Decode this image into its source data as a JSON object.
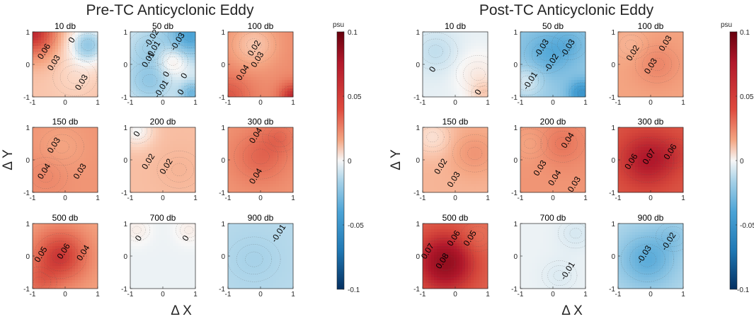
{
  "chart_data": [
    {
      "type": "heatmap",
      "title": "Pre-TC Anticyclonic Eddy",
      "xlabel": "Δ X",
      "ylabel": "Δ Y",
      "xlim": [
        -1,
        1
      ],
      "ylim": [
        -1,
        1
      ],
      "xticks": [
        "-1",
        "0",
        "1"
      ],
      "yticks": [
        "-1",
        "0",
        "1"
      ],
      "colorbar": {
        "label": "psu",
        "range": [
          -0.1,
          0.1
        ],
        "ticks": [
          "0.1",
          "0.05",
          "0",
          "-0.05",
          "-0.1"
        ]
      },
      "panels": [
        {
          "depth": "10 db",
          "base": 0.02,
          "blobs": [
            {
              "x": -1,
              "y": 1,
              "v": 0.07,
              "r": 0.55
            },
            {
              "x": 0.7,
              "y": 0.6,
              "v": -0.02,
              "r": 0.45
            },
            {
              "x": 0.3,
              "y": -0.4,
              "v": 0.015,
              "r": 0.5
            }
          ],
          "labels": [
            {
              "t": "0.06",
              "x": -0.65,
              "y": 0.4
            },
            {
              "t": "0.03",
              "x": -0.35,
              "y": 0.05
            },
            {
              "t": "0",
              "x": 0.2,
              "y": 0.75
            },
            {
              "t": "0.03",
              "x": 0.5,
              "y": -0.55
            }
          ]
        },
        {
          "depth": "50 db",
          "base": -0.005,
          "blobs": [
            {
              "x": 0.85,
              "y": 0.9,
              "v": -0.04,
              "r": 0.5
            },
            {
              "x": -0.4,
              "y": 0.5,
              "v": -0.015,
              "r": 0.5
            },
            {
              "x": -0.4,
              "y": -0.5,
              "v": -0.02,
              "r": 0.5
            },
            {
              "x": 0.9,
              "y": -0.9,
              "v": -0.03,
              "r": 0.25
            },
            {
              "x": 0.3,
              "y": 0.1,
              "v": 0.012,
              "r": 0.35
            }
          ],
          "labels": [
            {
              "t": "-0.02",
              "x": -0.35,
              "y": 0.8
            },
            {
              "t": "-0.03",
              "x": 0.45,
              "y": 0.7
            },
            {
              "t": "-0.01",
              "x": -0.3,
              "y": 0.45
            },
            {
              "t": "0.01",
              "x": -0.45,
              "y": 0.15
            },
            {
              "t": "0",
              "x": 0.1,
              "y": -0.3
            },
            {
              "t": "0",
              "x": 0.65,
              "y": -0.35
            },
            {
              "t": "-0.01",
              "x": -0.05,
              "y": -0.75
            },
            {
              "t": "0",
              "x": 0.55,
              "y": -0.85
            }
          ]
        },
        {
          "depth": "100 db",
          "base": 0.038,
          "blobs": [
            {
              "x": -1,
              "y": -1,
              "v": 0.055,
              "r": 0.5
            },
            {
              "x": 1,
              "y": -1,
              "v": 0.07,
              "r": 0.3
            },
            {
              "x": -0.2,
              "y": 0.6,
              "v": 0.02,
              "r": 0.5
            }
          ],
          "labels": [
            {
              "t": "0.02",
              "x": -0.2,
              "y": 0.5
            },
            {
              "t": "0.03",
              "x": -0.1,
              "y": 0.15
            },
            {
              "t": "0.04",
              "x": -0.55,
              "y": -0.25
            }
          ]
        },
        {
          "depth": "150 db",
          "base": 0.035,
          "blobs": [
            {
              "x": -0.6,
              "y": -0.5,
              "v": 0.04,
              "r": 0.5
            },
            {
              "x": -0.1,
              "y": 0.4,
              "v": 0.03,
              "r": 0.5
            }
          ],
          "labels": [
            {
              "t": "0.03",
              "x": -0.35,
              "y": 0.45
            },
            {
              "t": "0.04",
              "x": -0.65,
              "y": -0.35
            },
            {
              "t": "0.03",
              "x": 0.45,
              "y": -0.35
            }
          ]
        },
        {
          "depth": "200 db",
          "base": 0.022,
          "blobs": [
            {
              "x": -0.8,
              "y": 0.9,
              "v": 0.0,
              "r": 0.35
            },
            {
              "x": 0.5,
              "y": -0.3,
              "v": 0.025,
              "r": 0.5
            }
          ],
          "labels": [
            {
              "t": "0",
              "x": -0.8,
              "y": 0.8
            },
            {
              "t": "0.02",
              "x": -0.45,
              "y": -0.05
            },
            {
              "t": "0.02",
              "x": 0.1,
              "y": -0.2
            }
          ]
        },
        {
          "depth": "300 db",
          "base": 0.035,
          "blobs": [
            {
              "x": 0.0,
              "y": 0.1,
              "v": 0.05,
              "r": 0.6
            },
            {
              "x": 0.6,
              "y": 0.7,
              "v": 0.045,
              "r": 0.4
            }
          ],
          "labels": [
            {
              "t": "0.04",
              "x": -0.15,
              "y": 0.75
            },
            {
              "t": "0.04",
              "x": -0.15,
              "y": -0.5
            }
          ]
        },
        {
          "depth": "500 db",
          "base": 0.03,
          "blobs": [
            {
              "x": -0.15,
              "y": 0.0,
              "v": 0.065,
              "r": 0.6
            },
            {
              "x": -0.8,
              "y": -0.8,
              "v": 0.045,
              "r": 0.4
            }
          ],
          "labels": [
            {
              "t": "0.05",
              "x": -0.75,
              "y": 0.05
            },
            {
              "t": "0.06",
              "x": -0.05,
              "y": 0.15
            },
            {
              "t": "0.04",
              "x": 0.55,
              "y": 0.1
            }
          ]
        },
        {
          "depth": "700 db",
          "base": -0.002,
          "blobs": [
            {
              "x": -0.8,
              "y": 0.8,
              "v": 0.004,
              "r": 0.3
            },
            {
              "x": 0.8,
              "y": 0.8,
              "v": 0.004,
              "r": 0.3
            }
          ],
          "labels": [
            {
              "t": "0",
              "x": -0.75,
              "y": 0.55
            },
            {
              "t": "0",
              "x": 0.7,
              "y": 0.55
            }
          ]
        },
        {
          "depth": "900 db",
          "base": -0.012,
          "blobs": [
            {
              "x": -0.2,
              "y": -0.1,
              "v": -0.015,
              "r": 0.6
            }
          ],
          "labels": [
            {
              "t": "-0.01",
              "x": 0.55,
              "y": 0.7
            }
          ]
        }
      ]
    },
    {
      "type": "heatmap",
      "title": "Post-TC Anticyclonic Eddy",
      "xlabel": "Δ X",
      "ylabel": "Δ Y",
      "xlim": [
        -1,
        1
      ],
      "ylim": [
        -1,
        1
      ],
      "xticks": [
        "-1",
        "0",
        "1"
      ],
      "yticks": [
        "-1",
        "0",
        "1"
      ],
      "colorbar": {
        "label": "psu",
        "range": [
          -0.1,
          0.1
        ],
        "ticks": [
          "0.1",
          "0.05",
          "0",
          "-0.05",
          "-0.1"
        ]
      },
      "panels": [
        {
          "depth": "10 db",
          "base": -0.003,
          "blobs": [
            {
              "x": -0.6,
              "y": 0.4,
              "v": -0.01,
              "r": 0.5
            },
            {
              "x": 0.7,
              "y": -0.3,
              "v": 0.005,
              "r": 0.5
            },
            {
              "x": 0.9,
              "y": -0.9,
              "v": 0.015,
              "r": 0.3
            }
          ],
          "labels": [
            {
              "t": "0",
              "x": -0.7,
              "y": -0.15
            },
            {
              "t": "0",
              "x": 0.7,
              "y": -0.85
            }
          ]
        },
        {
          "depth": "50 db",
          "base": -0.02,
          "blobs": [
            {
              "x": -0.2,
              "y": 0.3,
              "v": -0.035,
              "r": 0.5
            },
            {
              "x": 0.5,
              "y": 0.6,
              "v": -0.03,
              "r": 0.4
            },
            {
              "x": 0.9,
              "y": -0.9,
              "v": -0.05,
              "r": 0.3
            },
            {
              "x": -0.8,
              "y": -0.5,
              "v": -0.005,
              "r": 0.4
            }
          ],
          "labels": [
            {
              "t": "-0.03",
              "x": -0.35,
              "y": 0.5
            },
            {
              "t": "-0.03",
              "x": 0.45,
              "y": 0.5
            },
            {
              "t": "-0.02",
              "x": -0.05,
              "y": 0.05
            },
            {
              "t": "-0.01",
              "x": -0.7,
              "y": -0.5
            }
          ]
        },
        {
          "depth": "100 db",
          "base": 0.03,
          "blobs": [
            {
              "x": 0.2,
              "y": 0.0,
              "v": 0.04,
              "r": 0.5
            },
            {
              "x": -0.6,
              "y": 0.6,
              "v": 0.025,
              "r": 0.4
            }
          ],
          "labels": [
            {
              "t": "0.02",
              "x": -0.55,
              "y": 0.35
            },
            {
              "t": "0.03",
              "x": 0.45,
              "y": 0.65
            },
            {
              "t": "0.03",
              "x": 0.0,
              "y": -0.05
            }
          ]
        },
        {
          "depth": "150 db",
          "base": 0.025,
          "blobs": [
            {
              "x": -0.7,
              "y": 0.7,
              "v": 0.01,
              "r": 0.4
            },
            {
              "x": 0.6,
              "y": 0.2,
              "v": 0.035,
              "r": 0.5
            }
          ],
          "labels": [
            {
              "t": "0.02",
              "x": -0.45,
              "y": -0.2
            },
            {
              "t": "0.03",
              "x": -0.05,
              "y": -0.6
            }
          ]
        },
        {
          "depth": "200 db",
          "base": 0.035,
          "blobs": [
            {
              "x": 0.3,
              "y": 0.5,
              "v": 0.045,
              "r": 0.5
            },
            {
              "x": -0.7,
              "y": 0.5,
              "v": 0.03,
              "r": 0.4
            }
          ],
          "labels": [
            {
              "t": "0.04",
              "x": 0.45,
              "y": 0.6
            },
            {
              "t": "0.03",
              "x": -0.4,
              "y": -0.25
            },
            {
              "t": "0.04",
              "x": 0.05,
              "y": -0.55
            },
            {
              "t": "0.03",
              "x": 0.65,
              "y": -0.75
            }
          ]
        },
        {
          "depth": "300 db",
          "base": 0.055,
          "blobs": [
            {
              "x": -0.1,
              "y": 0.0,
              "v": 0.075,
              "r": 0.6
            },
            {
              "x": 0.7,
              "y": 0.2,
              "v": 0.06,
              "r": 0.4
            }
          ],
          "labels": [
            {
              "t": "0.06",
              "x": -0.6,
              "y": -0.05
            },
            {
              "t": "0.07",
              "x": -0.05,
              "y": 0.1
            },
            {
              "t": "0.06",
              "x": 0.6,
              "y": 0.25
            }
          ]
        },
        {
          "depth": "500 db",
          "base": 0.05,
          "blobs": [
            {
              "x": -0.3,
              "y": -0.2,
              "v": 0.085,
              "r": 0.65
            },
            {
              "x": 0.7,
              "y": 0.6,
              "v": 0.045,
              "r": 0.4
            }
          ],
          "labels": [
            {
              "t": "0.07",
              "x": -0.85,
              "y": 0.15
            },
            {
              "t": "0.06",
              "x": -0.05,
              "y": 0.55
            },
            {
              "t": "0.05",
              "x": 0.45,
              "y": 0.55
            },
            {
              "t": "0.08",
              "x": -0.4,
              "y": -0.15
            }
          ]
        },
        {
          "depth": "700 db",
          "base": -0.002,
          "blobs": [
            {
              "x": 0.7,
              "y": 0.7,
              "v": -0.006,
              "r": 0.4
            },
            {
              "x": 0.2,
              "y": -0.6,
              "v": -0.005,
              "r": 0.4
            }
          ],
          "labels": [
            {
              "t": "-0.01",
              "x": 0.45,
              "y": -0.45
            }
          ]
        },
        {
          "depth": "900 db",
          "base": -0.012,
          "blobs": [
            {
              "x": -0.1,
              "y": -0.1,
              "v": -0.035,
              "r": 0.6
            },
            {
              "x": 0.7,
              "y": 0.6,
              "v": -0.02,
              "r": 0.4
            }
          ],
          "labels": [
            {
              "t": "-0.03",
              "x": -0.2,
              "y": 0.05
            },
            {
              "t": "-0.02",
              "x": 0.55,
              "y": 0.45
            }
          ]
        }
      ]
    }
  ]
}
